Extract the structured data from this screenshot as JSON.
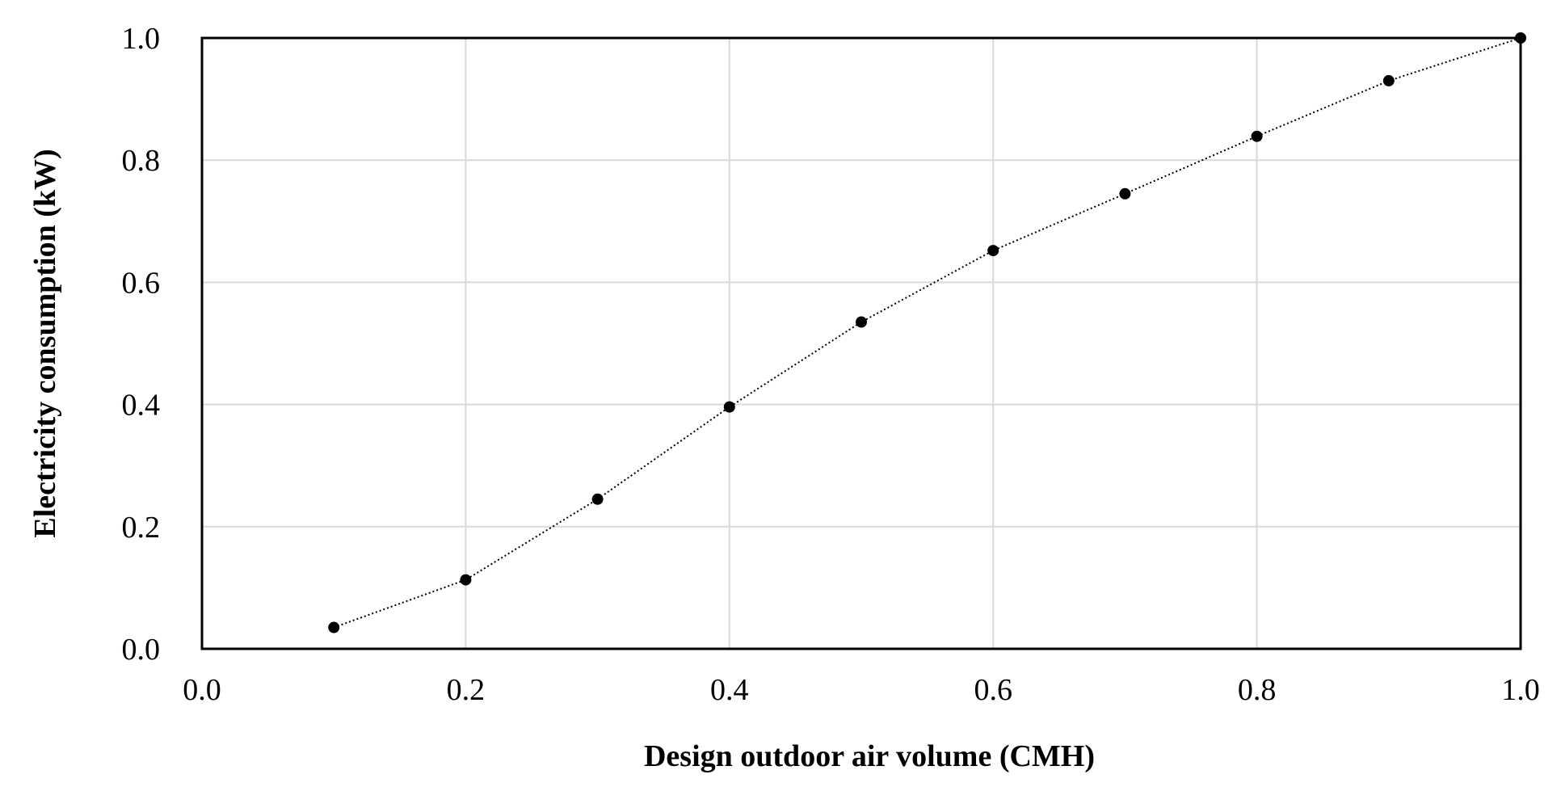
{
  "chart_data": {
    "type": "line",
    "title": "",
    "xlabel": "Design outdoor air volume (CMH)",
    "ylabel": "Electricity consumption (kW)",
    "xlim": [
      0.0,
      1.0
    ],
    "ylim": [
      0.0,
      1.0
    ],
    "x_ticks": [
      "0.0",
      "0.2",
      "0.4",
      "0.6",
      "0.8",
      "1.0"
    ],
    "y_ticks": [
      "0.0",
      "0.2",
      "0.4",
      "0.6",
      "0.8",
      "1.0"
    ],
    "grid": true,
    "legend": "none",
    "line_style": "dotted",
    "marker": "circle",
    "colors": {
      "series": "#000000",
      "grid": "#d9d9d9",
      "axes": "#000000"
    },
    "series": [
      {
        "x": [
          0.1,
          0.2,
          0.3,
          0.4,
          0.5,
          0.6,
          0.7,
          0.8,
          0.9,
          1.0
        ],
        "values": [
          0.035,
          0.113,
          0.245,
          0.396,
          0.535,
          0.652,
          0.745,
          0.839,
          0.93,
          1.0
        ]
      }
    ]
  }
}
